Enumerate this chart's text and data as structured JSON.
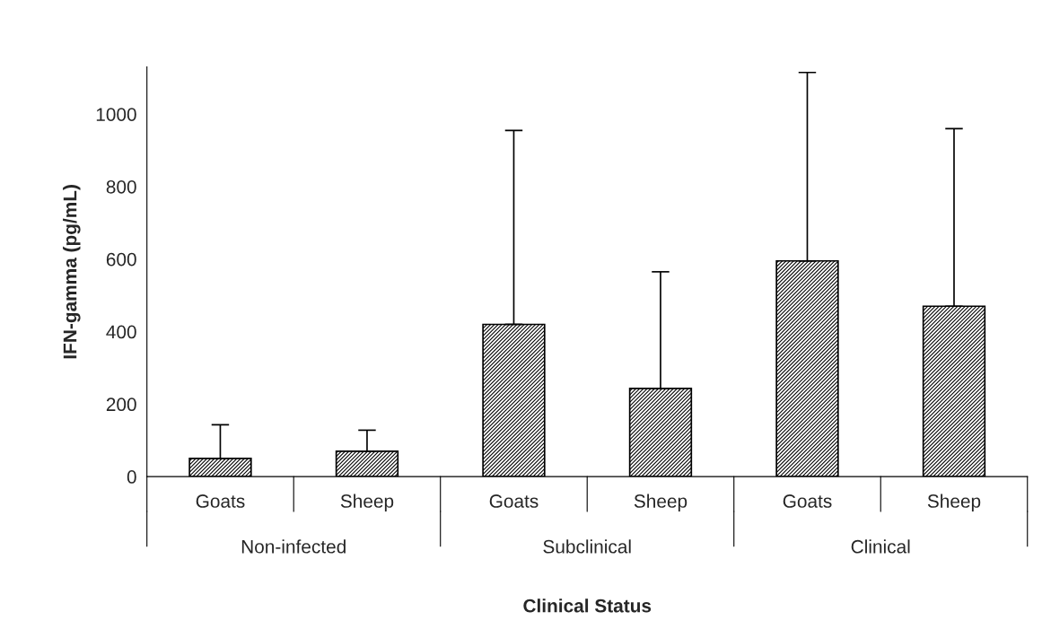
{
  "chart_data": {
    "type": "bar",
    "xlabel": "Clinical Status",
    "ylabel": "IFN-gamma (pg/mL)",
    "categories": [
      "Goats",
      "Sheep",
      "Goats",
      "Sheep",
      "Goats",
      "Sheep"
    ],
    "series": [
      {
        "color": "#000000",
        "values": [
          50,
          70,
          420,
          243,
          595,
          470
        ],
        "errors": [
          [
            50,
            143
          ],
          [
            70,
            128
          ],
          [
            420,
            955
          ],
          [
            243,
            565
          ],
          [
            595,
            1115
          ],
          [
            470,
            960
          ]
        ]
      }
    ],
    "annotations": [
      "Non-infected",
      "Subclinical",
      "Clinical"
    ],
    "ylim": [
      0,
      1130
    ],
    "yticks": [
      0,
      200,
      400,
      600,
      800,
      1000
    ],
    "grid": false,
    "legend": false
  }
}
